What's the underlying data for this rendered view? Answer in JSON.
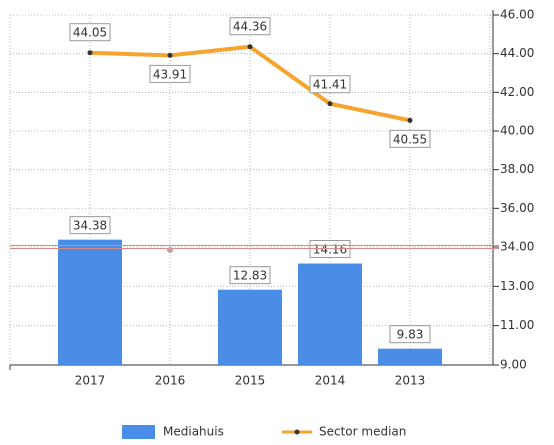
{
  "chart_data": {
    "type": "bar_line",
    "categories": [
      "2017",
      "2016",
      "2015",
      "2014",
      "2013"
    ],
    "series": [
      {
        "name": "Mediahuis",
        "type": "bar",
        "color": "#4a8de6",
        "values": [
          34.38,
          null,
          12.83,
          14.16,
          9.83
        ]
      },
      {
        "name": "Sector median",
        "type": "line",
        "color": "#f5a430",
        "values": [
          44.05,
          43.91,
          44.36,
          41.41,
          40.55
        ]
      }
    ],
    "ylim": [
      9,
      46
    ],
    "axis_break": [
      15,
      34
    ],
    "yticks": [
      {
        "value": 9,
        "label": "9.00"
      },
      {
        "value": 11,
        "label": "11.00"
      },
      {
        "value": 13,
        "label": "13.00"
      },
      {
        "value": 34,
        "label": "34.00"
      },
      {
        "value": 36,
        "label": "36.00"
      },
      {
        "value": 38,
        "label": "38.00"
      },
      {
        "value": 40,
        "label": "40.00"
      },
      {
        "value": 42,
        "label": "42.00"
      },
      {
        "value": 44,
        "label": "44.00"
      },
      {
        "value": 46,
        "label": "46.00"
      }
    ],
    "grid": true,
    "legend": "bottom"
  }
}
